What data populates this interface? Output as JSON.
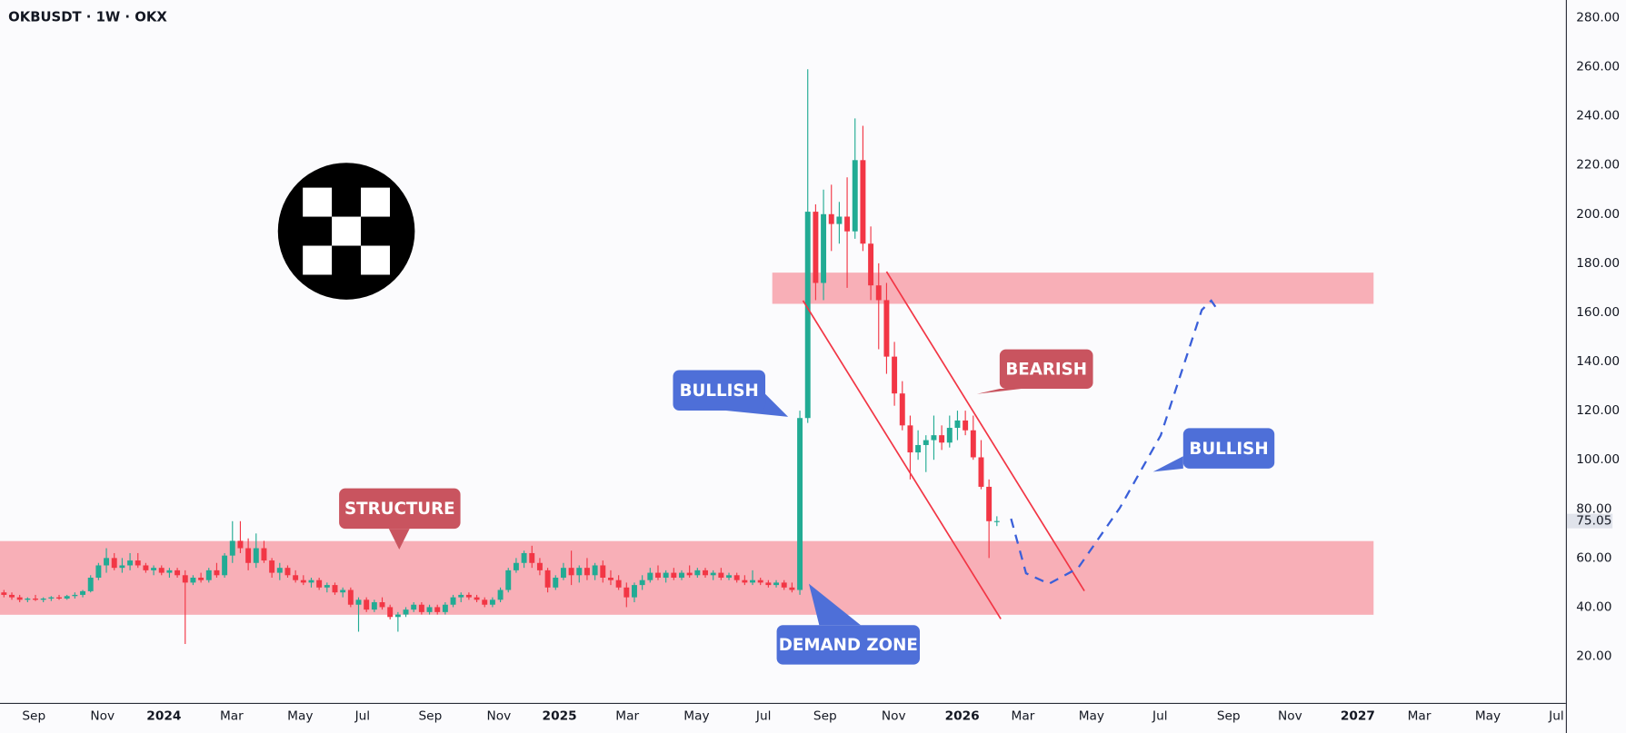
{
  "chart_data": {
    "type": "candlestick",
    "title": "OKBUSDT · 1W · OKX",
    "up_color": "#22ab94",
    "down_color": "#f23645",
    "xlim": [
      -0.5,
      198.2
    ],
    "ylim": [
      1,
      287.2
    ],
    "yticks": [
      {
        "value": 20,
        "label": "20.00"
      },
      {
        "value": 40,
        "label": "40.00"
      },
      {
        "value": 60,
        "label": "60.00"
      },
      {
        "value": 80,
        "label": "80.00"
      },
      {
        "value": 100,
        "label": "100.00"
      },
      {
        "value": 120,
        "label": "120.00"
      },
      {
        "value": 140,
        "label": "140.00"
      },
      {
        "value": 160,
        "label": "160.00"
      },
      {
        "value": 180,
        "label": "180.00"
      },
      {
        "value": 200,
        "label": "200.00"
      },
      {
        "value": 220,
        "label": "220.00"
      },
      {
        "value": 240,
        "label": "240.00"
      },
      {
        "value": 260,
        "label": "260.00"
      },
      {
        "value": 280,
        "label": "280.00"
      }
    ],
    "xticks": [
      {
        "value": 3.8,
        "label": "Sep"
      },
      {
        "value": 12.5,
        "label": "Nov"
      },
      {
        "value": 20.3,
        "label": "2024"
      },
      {
        "value": 28.9,
        "label": "Mar"
      },
      {
        "value": 37.6,
        "label": "May"
      },
      {
        "value": 45.5,
        "label": "Jul"
      },
      {
        "value": 54.1,
        "label": "Sep"
      },
      {
        "value": 62.8,
        "label": "Nov"
      },
      {
        "value": 70.5,
        "label": "2025"
      },
      {
        "value": 79.1,
        "label": "Mar"
      },
      {
        "value": 87.9,
        "label": "May"
      },
      {
        "value": 96.4,
        "label": "Jul"
      },
      {
        "value": 104.2,
        "label": "Sep"
      },
      {
        "value": 112.9,
        "label": "Nov"
      },
      {
        "value": 121.6,
        "label": "2026"
      },
      {
        "value": 129.3,
        "label": "Mar"
      },
      {
        "value": 138.0,
        "label": "May"
      },
      {
        "value": 146.7,
        "label": "Jul"
      },
      {
        "value": 155.4,
        "label": "Sep"
      },
      {
        "value": 163.2,
        "label": "Nov"
      },
      {
        "value": 171.8,
        "label": "2027"
      },
      {
        "value": 179.6,
        "label": "Mar"
      },
      {
        "value": 188.3,
        "label": "May"
      },
      {
        "value": 197.0,
        "label": "Jul"
      }
    ],
    "last_price": {
      "value": 75.05,
      "label": "75.05"
    },
    "ohlc": [
      [
        46,
        47,
        44,
        45
      ],
      [
        45,
        46,
        43,
        44
      ],
      [
        44,
        45,
        42,
        43
      ],
      [
        43,
        44,
        42,
        43.5
      ],
      [
        43.5,
        45,
        42.5,
        43
      ],
      [
        43,
        44,
        42,
        43.5
      ],
      [
        43.5,
        44.5,
        42.5,
        44
      ],
      [
        44,
        45,
        43,
        43.5
      ],
      [
        43.5,
        45,
        43,
        44.5
      ],
      [
        44.5,
        46,
        43.5,
        45
      ],
      [
        45,
        47,
        44,
        46.5
      ],
      [
        46.5,
        53,
        46,
        52
      ],
      [
        52,
        58,
        51,
        57
      ],
      [
        57,
        64,
        54,
        60
      ],
      [
        60,
        62,
        55,
        56
      ],
      [
        56,
        60,
        54,
        57
      ],
      [
        57,
        62,
        55,
        59
      ],
      [
        59,
        62,
        56,
        57
      ],
      [
        57,
        58,
        54,
        55
      ],
      [
        55,
        57,
        53,
        56
      ],
      [
        56,
        57,
        53,
        54
      ],
      [
        54,
        56,
        52,
        55
      ],
      [
        55,
        56,
        52,
        53
      ],
      [
        53,
        55,
        25,
        50
      ],
      [
        50,
        53,
        49,
        52
      ],
      [
        52,
        54,
        50,
        51
      ],
      [
        51,
        56,
        50,
        55
      ],
      [
        55,
        58,
        52,
        53
      ],
      [
        53,
        62,
        52,
        61
      ],
      [
        61,
        75,
        58,
        67
      ],
      [
        67,
        75,
        62,
        64
      ],
      [
        64,
        68,
        55,
        58
      ],
      [
        58,
        70,
        56,
        64
      ],
      [
        64,
        67,
        58,
        59
      ],
      [
        59,
        60,
        52,
        54
      ],
      [
        54,
        58,
        51,
        56
      ],
      [
        56,
        57,
        52,
        53
      ],
      [
        53,
        55,
        50,
        51
      ],
      [
        51,
        53,
        49,
        50
      ],
      [
        50,
        52,
        48,
        51
      ],
      [
        51,
        52,
        47,
        48
      ],
      [
        48,
        50,
        46,
        49
      ],
      [
        49,
        50,
        45,
        46
      ],
      [
        46,
        48,
        44,
        47
      ],
      [
        47,
        48,
        40,
        41
      ],
      [
        41,
        44,
        30,
        43
      ],
      [
        43,
        44,
        38,
        39
      ],
      [
        39,
        43,
        38,
        42
      ],
      [
        42,
        44,
        39,
        40
      ],
      [
        40,
        41,
        35,
        36
      ],
      [
        36,
        38,
        30,
        37
      ],
      [
        37,
        40,
        36,
        39
      ],
      [
        39,
        42,
        38,
        41
      ],
      [
        41,
        42,
        37,
        38
      ],
      [
        38,
        41,
        37,
        40
      ],
      [
        40,
        41,
        37,
        38
      ],
      [
        38,
        42,
        37,
        41
      ],
      [
        41,
        45,
        40,
        44
      ],
      [
        44,
        46,
        42,
        45
      ],
      [
        45,
        46,
        43,
        44
      ],
      [
        44,
        45,
        42,
        43
      ],
      [
        43,
        44,
        40,
        41
      ],
      [
        41,
        44,
        40,
        43
      ],
      [
        43,
        48,
        42,
        47
      ],
      [
        47,
        56,
        46,
        55
      ],
      [
        55,
        60,
        54,
        58
      ],
      [
        58,
        63,
        56,
        62
      ],
      [
        62,
        65,
        56,
        58
      ],
      [
        58,
        60,
        53,
        55
      ],
      [
        55,
        56,
        46,
        48
      ],
      [
        48,
        53,
        47,
        52
      ],
      [
        52,
        58,
        51,
        56
      ],
      [
        56,
        63,
        49,
        53
      ],
      [
        53,
        57,
        50,
        56
      ],
      [
        56,
        60,
        51,
        53
      ],
      [
        53,
        58,
        51,
        57
      ],
      [
        57,
        59,
        50,
        52
      ],
      [
        52,
        55,
        49,
        51
      ],
      [
        51,
        53,
        47,
        48
      ],
      [
        48,
        50,
        40,
        44
      ],
      [
        44,
        50,
        42,
        49
      ],
      [
        49,
        53,
        47,
        51
      ],
      [
        51,
        56,
        50,
        54
      ],
      [
        54,
        57,
        51,
        52
      ],
      [
        52,
        55,
        50,
        54
      ],
      [
        54,
        56,
        51,
        52
      ],
      [
        52,
        55,
        51,
        54
      ],
      [
        54,
        57,
        52,
        53
      ],
      [
        53,
        56,
        52,
        55
      ],
      [
        55,
        56,
        52,
        53
      ],
      [
        53,
        55,
        51,
        54
      ],
      [
        54,
        56,
        51,
        52
      ],
      [
        52,
        54,
        51,
        53
      ],
      [
        53,
        54,
        50,
        51
      ],
      [
        51,
        53,
        49,
        50
      ],
      [
        50,
        55,
        49,
        51
      ],
      [
        51,
        52,
        49,
        50
      ],
      [
        50,
        51,
        48,
        49
      ],
      [
        49,
        51,
        48,
        50
      ],
      [
        50,
        51,
        47,
        48
      ],
      [
        48,
        50,
        46,
        47
      ],
      [
        47,
        120,
        45,
        117
      ],
      [
        117,
        259,
        115,
        201
      ],
      [
        201,
        204,
        165,
        172
      ],
      [
        172,
        210,
        165,
        200
      ],
      [
        200,
        212,
        185,
        196
      ],
      [
        196,
        205,
        188,
        199
      ],
      [
        199,
        215,
        170,
        193
      ],
      [
        193,
        239,
        190,
        222
      ],
      [
        222,
        236,
        185,
        188
      ],
      [
        188,
        195,
        165,
        171
      ],
      [
        171,
        180,
        145,
        165
      ],
      [
        165,
        172,
        135,
        142
      ],
      [
        142,
        148,
        122,
        127
      ],
      [
        127,
        132,
        112,
        114
      ],
      [
        114,
        118,
        92,
        103
      ],
      [
        103,
        112,
        100,
        106
      ],
      [
        106,
        110,
        95,
        108
      ],
      [
        108,
        118,
        100,
        110
      ],
      [
        110,
        114,
        104,
        107
      ],
      [
        107,
        118,
        105,
        113
      ],
      [
        113,
        120,
        108,
        116
      ],
      [
        116,
        120,
        110,
        112
      ],
      [
        112,
        118,
        100,
        101
      ],
      [
        101,
        108,
        88,
        89
      ],
      [
        89,
        92,
        60,
        75
      ],
      [
        75,
        77,
        73,
        75.05
      ]
    ],
    "zones": [
      {
        "x": [
          97.5,
          173.8
        ],
        "low": 163.5,
        "high": 176.2,
        "color": "#f7a1aa"
      },
      {
        "x": [
          -0.5,
          173.8
        ],
        "low": 36.9,
        "high": 66.9,
        "color": "#f7a1aa"
      }
    ],
    "channel": [
      {
        "x": [
          101.4,
          126.5
        ],
        "y": [
          164.8,
          35.2
        ],
        "color": "#f23645"
      },
      {
        "x": [
          112,
          137.1
        ],
        "y": [
          176.6,
          46.6
        ],
        "color": "#f23645"
      }
    ],
    "projection": {
      "x": [
        127.8,
        129.7,
        132.6,
        136.3,
        141.6,
        146.8,
        152,
        153.2,
        154.1
      ],
      "y": [
        76,
        53.8,
        49.5,
        55.9,
        80.4,
        110,
        161,
        164.8,
        160.6
      ],
      "color": "#3a5fd9"
    },
    "annotations": [
      {
        "text": "BULLISH",
        "color": "#4e6fd8"
      },
      {
        "text": "BEARISH",
        "color": "#c9545f"
      },
      {
        "text": "STRUCTURE",
        "color": "#c9545f"
      },
      {
        "text": "DEMAND ZONE",
        "color": "#4e6fd8"
      },
      {
        "text": "BULLISH",
        "color": "#4e6fd8"
      }
    ]
  }
}
